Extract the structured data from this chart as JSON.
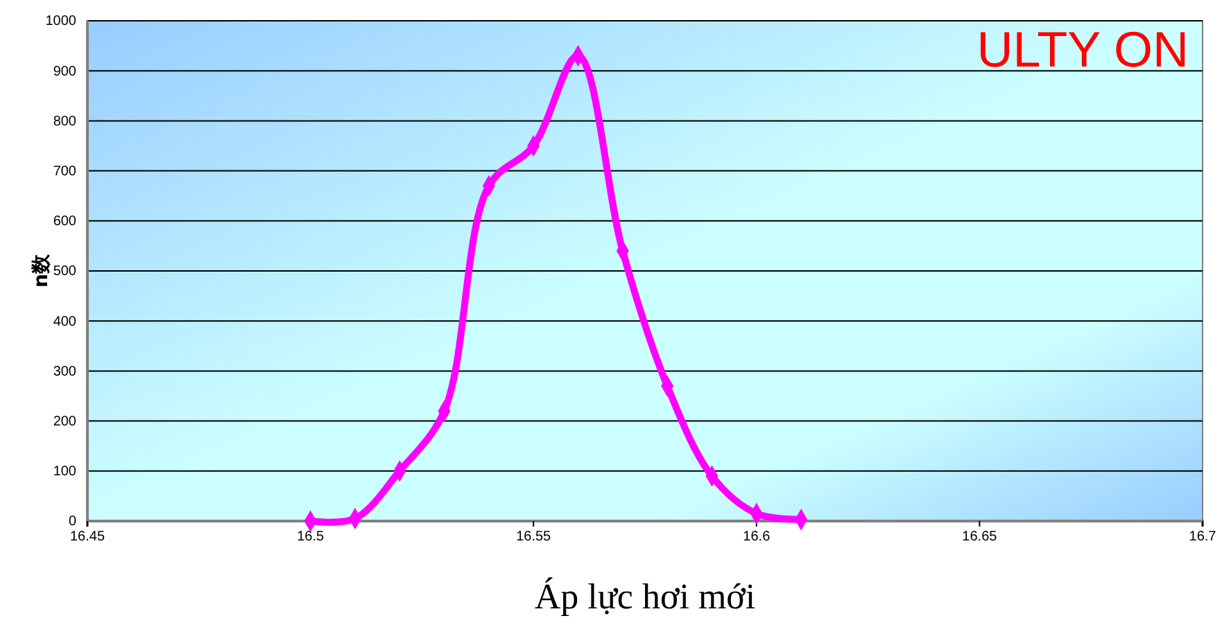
{
  "chart_data": {
    "type": "line",
    "xlabel": "Áp lực hơi mới",
    "ylabel": "n数",
    "annotations": [
      "ULTY ON"
    ],
    "x": [
      16.5,
      16.51,
      16.52,
      16.53,
      16.54,
      16.55,
      16.56,
      16.57,
      16.58,
      16.59,
      16.6,
      16.61
    ],
    "series": [
      {
        "color": "#ff00ff",
        "values": [
          0,
          5,
          100,
          220,
          670,
          750,
          930,
          540,
          270,
          90,
          15,
          3
        ]
      }
    ],
    "xlim": [
      16.45,
      16.7
    ],
    "xticks": [
      16.45,
      16.5,
      16.55,
      16.6,
      16.65,
      16.7
    ],
    "ylim": [
      0,
      1000
    ],
    "yticks": [
      0,
      100,
      200,
      300,
      400,
      500,
      600,
      700,
      800,
      900,
      1000
    ],
    "grid": "y",
    "marker": "diamond",
    "line_style": "solid"
  }
}
